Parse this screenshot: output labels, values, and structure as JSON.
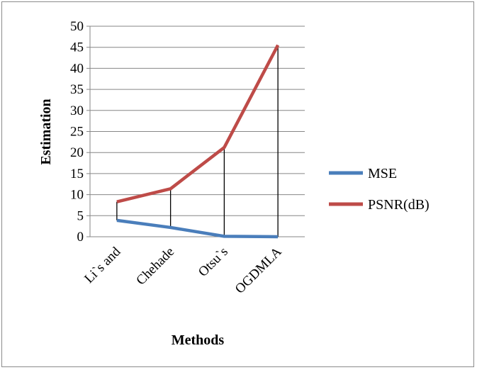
{
  "chart_data": {
    "type": "line",
    "categories": [
      "Li`s and",
      "Chehade",
      "Otsu`s",
      "OGDMLA"
    ],
    "series": [
      {
        "name": "MSE",
        "values": [
          3.9,
          2.2,
          0.1,
          0.0
        ],
        "color": "#4a7ebb"
      },
      {
        "name": "PSNR(dB)",
        "values": [
          8.3,
          11.4,
          21.2,
          45.5
        ],
        "color": "#be4b48"
      }
    ],
    "title": "",
    "xlabel": "Methods",
    "ylabel": "Estimation",
    "ylim": [
      0,
      50
    ],
    "yticks": [
      0,
      5,
      10,
      15,
      20,
      25,
      30,
      35,
      40,
      45,
      50
    ],
    "grid": true,
    "legend": "right",
    "drop_lines": true
  }
}
